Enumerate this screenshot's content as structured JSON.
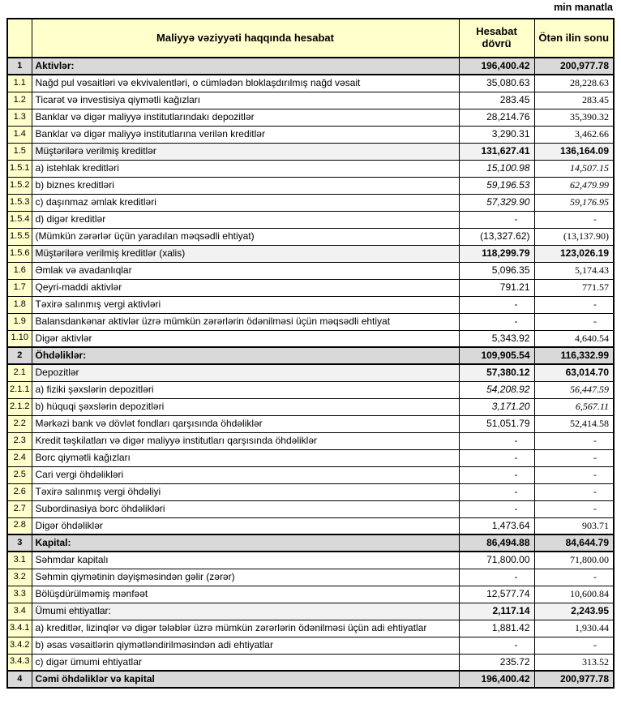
{
  "page": {
    "unit_note": "min manatla"
  },
  "colors": {
    "header_fill": "#FFFFCC",
    "section_fill": "#D9D9D9",
    "subtotal_fill": "#F2F2F2",
    "border": "#000000"
  },
  "table": {
    "header": {
      "title": "Maliyyə vəziyyəti haqqında hesabat",
      "col_current": "Hesabat dövrü",
      "col_previous": "Ötən ilin sonu"
    },
    "rows": [
      {
        "num": "1",
        "label": "Aktivlər:",
        "v1": "196,400.42",
        "v2": "200,977.78",
        "type": "section"
      },
      {
        "num": "1.1",
        "label": "Nağd pul vəsaitləri və  ekvivalentləri, o cümlədən bloklaşdırılmış nağd vəsait",
        "v1": "35,080.63",
        "v2": "28,228.63",
        "type": "normal"
      },
      {
        "num": "1.2",
        "label": "Ticarət və investisiya qiymətli kağızları",
        "v1": "283.45",
        "v2": "283.45",
        "type": "normal"
      },
      {
        "num": "1.3",
        "label": "Banklar və digər maliyyə institutlarındakı depozitlər",
        "v1": "28,214.76",
        "v2": "35,390.32",
        "type": "normal"
      },
      {
        "num": "1.4",
        "label": "Banklar və digər maliyyə institutlarına verilən kreditlər",
        "v1": "3,290.31",
        "v2": "3,462.66",
        "type": "normal"
      },
      {
        "num": "1.5",
        "label": "Müştərilərə verilmiş kreditlər",
        "v1": "131,627.41",
        "v2": "136,164.09",
        "type": "subtotal"
      },
      {
        "num": "1.5.1",
        "label": "a) istehlak kreditləri",
        "v1": "15,100.98",
        "v2": "14,507.15",
        "type": "italic"
      },
      {
        "num": "1.5.2",
        "label": "b) biznes kreditləri",
        "v1": "59,196.53",
        "v2": "62,479.99",
        "type": "italic"
      },
      {
        "num": "1.5.3",
        "label": "c) daşınmaz əmlak kreditləri",
        "v1": "57,329.90",
        "v2": "59,176.95",
        "type": "italic"
      },
      {
        "num": "1.5.4",
        "label": "d) digər kreditlər",
        "v1": "-",
        "v2": "-",
        "type": "normal"
      },
      {
        "num": "1.5.5",
        "label": "(Mümkün zərərlər üçün yaradılan məqsədli ehtiyat)",
        "v1": "(13,327.62)",
        "v2": "(13,137.90)",
        "type": "normal"
      },
      {
        "num": "1.5.6",
        "label": "Müştərilərə verilmiş kreditlər (xalis)",
        "v1": "118,299.79",
        "v2": "123,026.19",
        "type": "subtotal"
      },
      {
        "num": "1.6",
        "label": "Əmlak və avadanlıqlar",
        "v1": "5,096.35",
        "v2": "5,174.43",
        "type": "normal"
      },
      {
        "num": "1.7",
        "label": "Qeyri-maddi aktivlər",
        "v1": "791.21",
        "v2": "771.57",
        "type": "normal"
      },
      {
        "num": "1.8",
        "label": "Təxirə salınmış vergi aktivləri",
        "v1": "-",
        "v2": "-",
        "type": "normal"
      },
      {
        "num": "1.9",
        "label": "Balansdankənar aktivlər üzrə mümkün zərərlərin ödənilməsi üçün məqsədli ehtiyat",
        "v1": "-",
        "v2": "-",
        "type": "normal"
      },
      {
        "num": "1.10",
        "label": "Digər aktivlər",
        "v1": "5,343.92",
        "v2": "4,640.54",
        "type": "normal"
      },
      {
        "num": "2",
        "label": "Öhdəliklər:",
        "v1": "109,905.54",
        "v2": "116,332.99",
        "type": "section"
      },
      {
        "num": "2.1",
        "label": "Depozitlər",
        "v1": "57,380.12",
        "v2": "63,014.70",
        "type": "subtotal"
      },
      {
        "num": "2.1.1",
        "label": "a) fiziki şəxslərin depozitləri",
        "v1": "54,208.92",
        "v2": "56,447.59",
        "type": "italic"
      },
      {
        "num": "2.1.2",
        "label": "b) hüquqi şəxslərin depozitləri",
        "v1": "3,171.20",
        "v2": "6,567.11",
        "type": "italic"
      },
      {
        "num": "2.2",
        "label": "Mərkəzi bank və dövlət fondları qarşısında öhdəliklər",
        "v1": "51,051.79",
        "v2": "52,414.58",
        "type": "normal"
      },
      {
        "num": "2.3",
        "label": "Kredit təşkilatları və digər maliyyə institutları qarşısında öhdəliklər",
        "v1": "-",
        "v2": "-",
        "type": "normal"
      },
      {
        "num": "2.4",
        "label": "Borc qiymətli kağızları",
        "v1": "-",
        "v2": "-",
        "type": "normal"
      },
      {
        "num": "2.5",
        "label": "Cari vergi öhdəlikləri",
        "v1": "-",
        "v2": "-",
        "type": "normal"
      },
      {
        "num": "2.6",
        "label": "Təxirə salınmış vergi öhdəliyi",
        "v1": "-",
        "v2": "-",
        "type": "normal"
      },
      {
        "num": "2.7",
        "label": "Subordinasiya borc öhdəlikləri",
        "v1": "-",
        "v2": "-",
        "type": "normal"
      },
      {
        "num": "2.8",
        "label": "Digər öhdəliklər",
        "v1": "1,473.64",
        "v2": "903.71",
        "type": "normal"
      },
      {
        "num": "3",
        "label": "Kapital:",
        "v1": "86,494.88",
        "v2": "84,644.79",
        "type": "section"
      },
      {
        "num": "3.1",
        "label": "Səhmdar kapitalı",
        "v1": "71,800.00",
        "v2": "71,800.00",
        "type": "normal"
      },
      {
        "num": "3.2",
        "label": "Səhmin qiymətinin dəyişməsindən gəlir (zərər)",
        "v1": "-",
        "v2": "-",
        "type": "normal"
      },
      {
        "num": "3.3",
        "label": "Bölüşdürülməmiş mənfəət",
        "v1": "12,577.74",
        "v2": "10,600.84",
        "type": "normal"
      },
      {
        "num": "3.4",
        "label": "Ümumi ehtiyatlar:",
        "v1": "2,117.14",
        "v2": "2,243.95",
        "type": "subtotal"
      },
      {
        "num": "3.4.1",
        "label": "a) kreditlər, lizinqlər və digər tələblər üzrə mümkün zərərlərin ödənilməsi üçün adi ehtiyatlar",
        "v1": "1,881.42",
        "v2": "1,930.44",
        "type": "normal"
      },
      {
        "num": "3.4.2",
        "label": "b) əsas vəsaitlərin qiymətləndirilməsindən adi ehtiyatlar",
        "v1": "-",
        "v2": "-",
        "type": "normal"
      },
      {
        "num": "3.4.3",
        "label": "c) digər ümumi ehtiyatlar",
        "v1": "235.72",
        "v2": "313.52",
        "type": "normal"
      },
      {
        "num": "4",
        "label": "Cəmi öhdəliklər və kapital",
        "v1": "196,400.42",
        "v2": "200,977.78",
        "type": "section"
      }
    ]
  }
}
